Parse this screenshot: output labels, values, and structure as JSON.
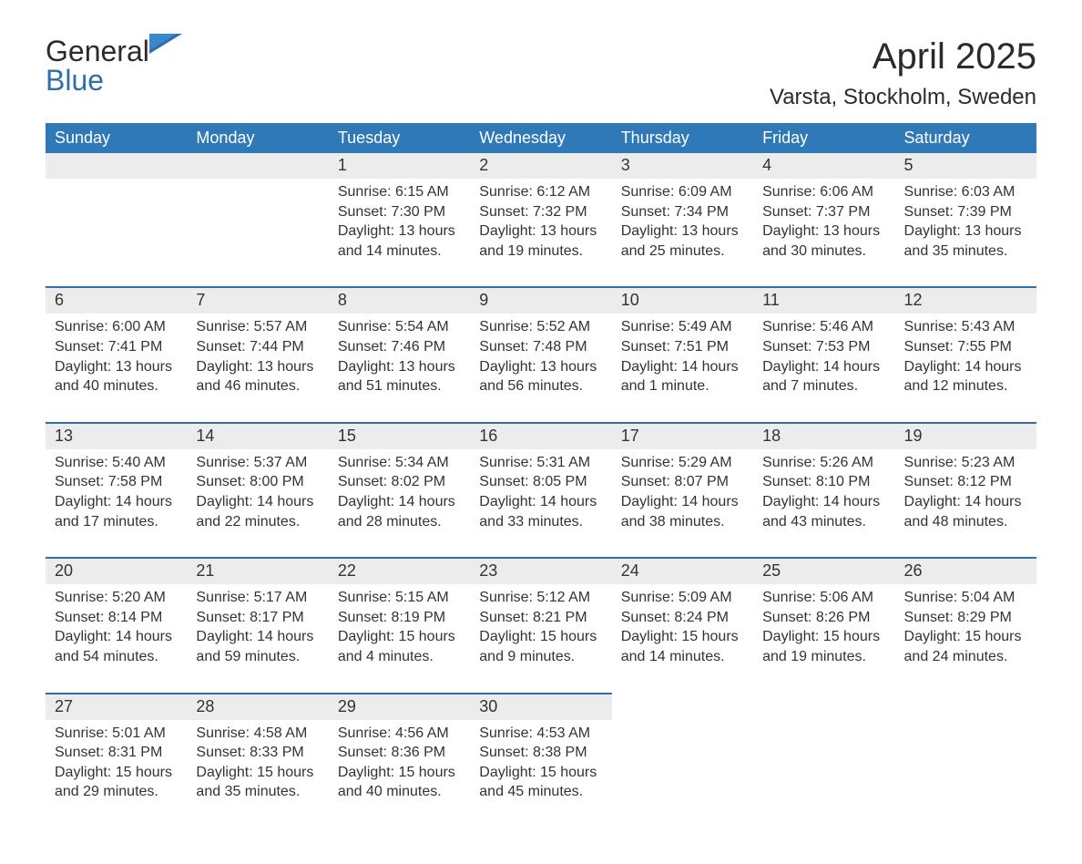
{
  "logo": {
    "text1": "General",
    "text2": "Blue"
  },
  "title": "April 2025",
  "location": "Varsta, Stockholm, Sweden",
  "colors": {
    "header_bg": "#3079b8",
    "header_text": "#ffffff",
    "daynum_bg": "#ececec",
    "day_border": "#2d6fb0",
    "text": "#333333",
    "logo_blue": "#2d6fb0"
  },
  "weekdays": [
    "Sunday",
    "Monday",
    "Tuesday",
    "Wednesday",
    "Thursday",
    "Friday",
    "Saturday"
  ],
  "weeks": [
    [
      {
        "day": "",
        "lines": []
      },
      {
        "day": "",
        "lines": []
      },
      {
        "day": "1",
        "lines": [
          "Sunrise: 6:15 AM",
          "Sunset: 7:30 PM",
          "Daylight: 13 hours and 14 minutes."
        ]
      },
      {
        "day": "2",
        "lines": [
          "Sunrise: 6:12 AM",
          "Sunset: 7:32 PM",
          "Daylight: 13 hours and 19 minutes."
        ]
      },
      {
        "day": "3",
        "lines": [
          "Sunrise: 6:09 AM",
          "Sunset: 7:34 PM",
          "Daylight: 13 hours and 25 minutes."
        ]
      },
      {
        "day": "4",
        "lines": [
          "Sunrise: 6:06 AM",
          "Sunset: 7:37 PM",
          "Daylight: 13 hours and 30 minutes."
        ]
      },
      {
        "day": "5",
        "lines": [
          "Sunrise: 6:03 AM",
          "Sunset: 7:39 PM",
          "Daylight: 13 hours and 35 minutes."
        ]
      }
    ],
    [
      {
        "day": "6",
        "lines": [
          "Sunrise: 6:00 AM",
          "Sunset: 7:41 PM",
          "Daylight: 13 hours and 40 minutes."
        ]
      },
      {
        "day": "7",
        "lines": [
          "Sunrise: 5:57 AM",
          "Sunset: 7:44 PM",
          "Daylight: 13 hours and 46 minutes."
        ]
      },
      {
        "day": "8",
        "lines": [
          "Sunrise: 5:54 AM",
          "Sunset: 7:46 PM",
          "Daylight: 13 hours and 51 minutes."
        ]
      },
      {
        "day": "9",
        "lines": [
          "Sunrise: 5:52 AM",
          "Sunset: 7:48 PM",
          "Daylight: 13 hours and 56 minutes."
        ]
      },
      {
        "day": "10",
        "lines": [
          "Sunrise: 5:49 AM",
          "Sunset: 7:51 PM",
          "Daylight: 14 hours and 1 minute."
        ]
      },
      {
        "day": "11",
        "lines": [
          "Sunrise: 5:46 AM",
          "Sunset: 7:53 PM",
          "Daylight: 14 hours and 7 minutes."
        ]
      },
      {
        "day": "12",
        "lines": [
          "Sunrise: 5:43 AM",
          "Sunset: 7:55 PM",
          "Daylight: 14 hours and 12 minutes."
        ]
      }
    ],
    [
      {
        "day": "13",
        "lines": [
          "Sunrise: 5:40 AM",
          "Sunset: 7:58 PM",
          "Daylight: 14 hours and 17 minutes."
        ]
      },
      {
        "day": "14",
        "lines": [
          "Sunrise: 5:37 AM",
          "Sunset: 8:00 PM",
          "Daylight: 14 hours and 22 minutes."
        ]
      },
      {
        "day": "15",
        "lines": [
          "Sunrise: 5:34 AM",
          "Sunset: 8:02 PM",
          "Daylight: 14 hours and 28 minutes."
        ]
      },
      {
        "day": "16",
        "lines": [
          "Sunrise: 5:31 AM",
          "Sunset: 8:05 PM",
          "Daylight: 14 hours and 33 minutes."
        ]
      },
      {
        "day": "17",
        "lines": [
          "Sunrise: 5:29 AM",
          "Sunset: 8:07 PM",
          "Daylight: 14 hours and 38 minutes."
        ]
      },
      {
        "day": "18",
        "lines": [
          "Sunrise: 5:26 AM",
          "Sunset: 8:10 PM",
          "Daylight: 14 hours and 43 minutes."
        ]
      },
      {
        "day": "19",
        "lines": [
          "Sunrise: 5:23 AM",
          "Sunset: 8:12 PM",
          "Daylight: 14 hours and 48 minutes."
        ]
      }
    ],
    [
      {
        "day": "20",
        "lines": [
          "Sunrise: 5:20 AM",
          "Sunset: 8:14 PM",
          "Daylight: 14 hours and 54 minutes."
        ]
      },
      {
        "day": "21",
        "lines": [
          "Sunrise: 5:17 AM",
          "Sunset: 8:17 PM",
          "Daylight: 14 hours and 59 minutes."
        ]
      },
      {
        "day": "22",
        "lines": [
          "Sunrise: 5:15 AM",
          "Sunset: 8:19 PM",
          "Daylight: 15 hours and 4 minutes."
        ]
      },
      {
        "day": "23",
        "lines": [
          "Sunrise: 5:12 AM",
          "Sunset: 8:21 PM",
          "Daylight: 15 hours and 9 minutes."
        ]
      },
      {
        "day": "24",
        "lines": [
          "Sunrise: 5:09 AM",
          "Sunset: 8:24 PM",
          "Daylight: 15 hours and 14 minutes."
        ]
      },
      {
        "day": "25",
        "lines": [
          "Sunrise: 5:06 AM",
          "Sunset: 8:26 PM",
          "Daylight: 15 hours and 19 minutes."
        ]
      },
      {
        "day": "26",
        "lines": [
          "Sunrise: 5:04 AM",
          "Sunset: 8:29 PM",
          "Daylight: 15 hours and 24 minutes."
        ]
      }
    ],
    [
      {
        "day": "27",
        "lines": [
          "Sunrise: 5:01 AM",
          "Sunset: 8:31 PM",
          "Daylight: 15 hours and 29 minutes."
        ]
      },
      {
        "day": "28",
        "lines": [
          "Sunrise: 4:58 AM",
          "Sunset: 8:33 PM",
          "Daylight: 15 hours and 35 minutes."
        ]
      },
      {
        "day": "29",
        "lines": [
          "Sunrise: 4:56 AM",
          "Sunset: 8:36 PM",
          "Daylight: 15 hours and 40 minutes."
        ]
      },
      {
        "day": "30",
        "lines": [
          "Sunrise: 4:53 AM",
          "Sunset: 8:38 PM",
          "Daylight: 15 hours and 45 minutes."
        ]
      },
      {
        "day": "",
        "lines": []
      },
      {
        "day": "",
        "lines": []
      },
      {
        "day": "",
        "lines": []
      }
    ]
  ]
}
